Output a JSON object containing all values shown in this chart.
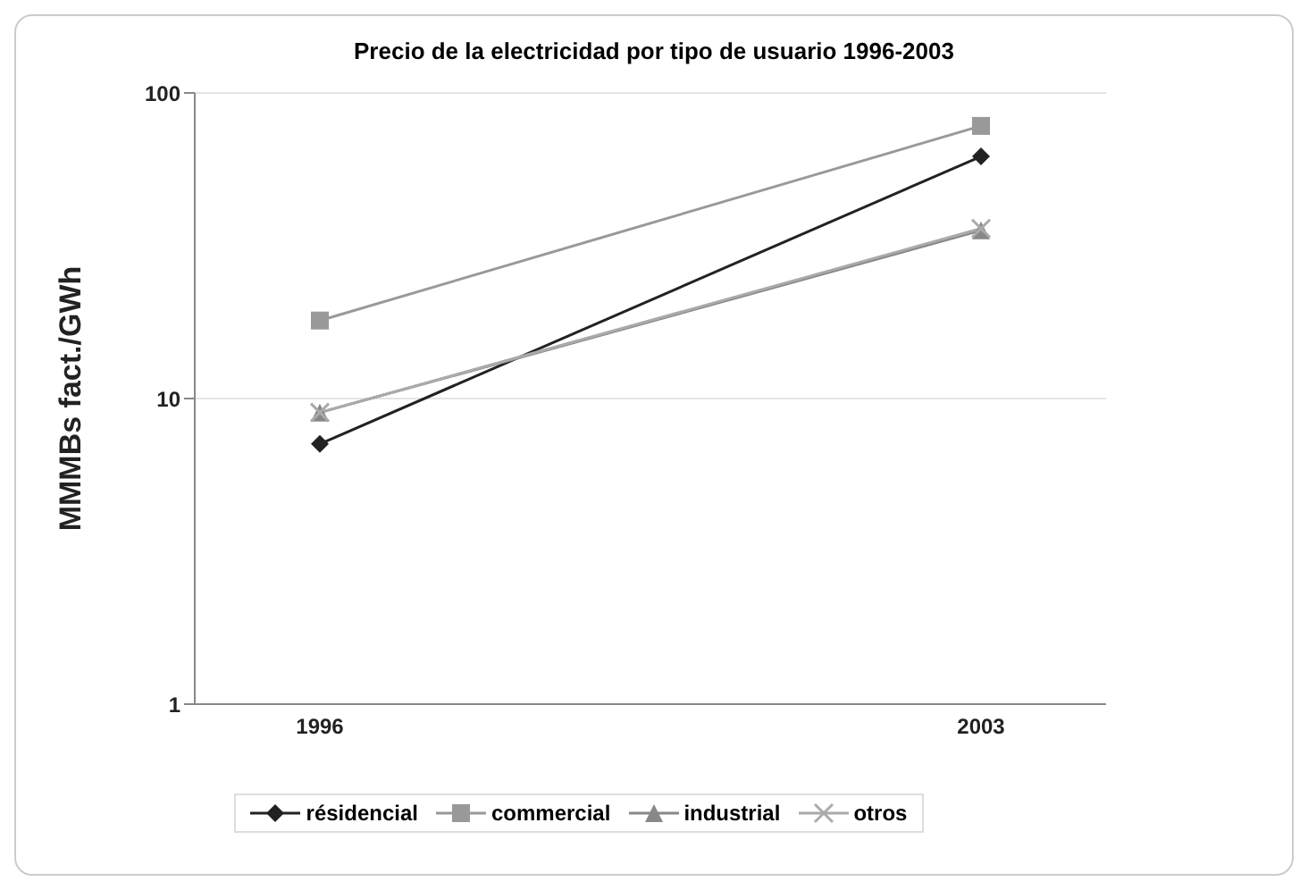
{
  "chart_data": {
    "type": "line",
    "title": "Precio de la electricidad por tipo de usuario 1996-2003",
    "ylabel": "MMMBs fact./GWh",
    "categories": [
      "1996",
      "2003"
    ],
    "log": true,
    "ylim": [
      1,
      100
    ],
    "yticks": [
      1,
      10,
      100
    ],
    "grid": "y",
    "legend": "bottom",
    "series": [
      {
        "name": "résidencial",
        "color": "#222222",
        "marker": "diamond",
        "values": [
          7.1,
          62
        ]
      },
      {
        "name": "commercial",
        "color": "#999999",
        "marker": "square",
        "values": [
          18,
          78
        ]
      },
      {
        "name": "industrial",
        "color": "#888888",
        "marker": "triangle",
        "values": [
          9,
          35.5
        ]
      },
      {
        "name": "otros",
        "color": "#aaaaaa",
        "marker": "cross",
        "values": [
          9,
          36
        ]
      }
    ]
  }
}
